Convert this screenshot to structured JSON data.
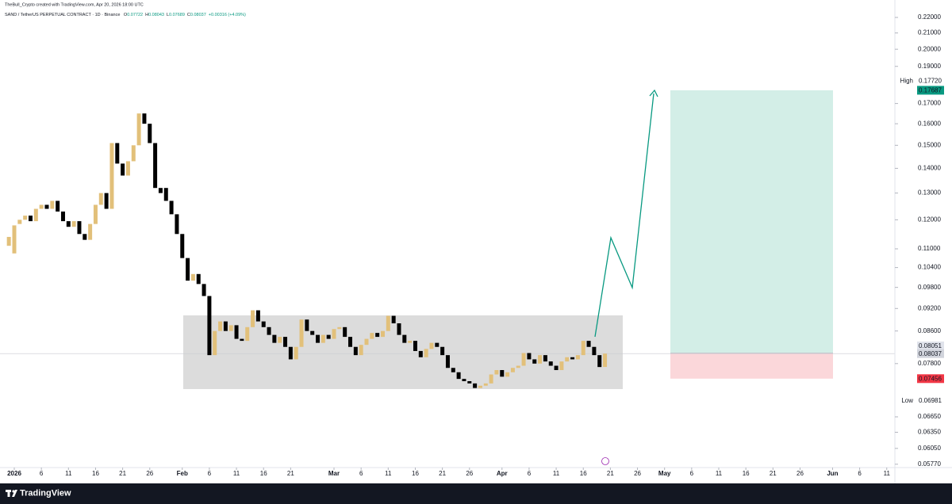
{
  "header": {
    "credit": "TheBull_Crypto created with TradingView.com, Apr 20, 2026 18:00 UTC",
    "symbol": "SAND / TetherUS PERPETUAL CONTRACT · 1D · Binance",
    "legend": [
      {
        "label": "O",
        "value": 0.07722
      },
      {
        "label": "H",
        "value": 0.08043
      },
      {
        "label": "L",
        "value": 0.07689
      },
      {
        "label": "C",
        "value": 0.08037
      }
    ],
    "change": "+0.00316 (+4.09%)"
  },
  "chart_data": {
    "type": "candlestick",
    "x": [
      -1,
      0,
      1,
      2,
      3,
      4,
      5,
      6,
      7,
      8,
      9,
      10,
      11,
      12,
      13,
      14,
      15,
      16,
      17,
      18,
      19,
      20,
      21,
      22,
      23,
      24,
      25,
      26,
      27,
      28,
      29,
      30,
      31,
      32,
      33,
      34,
      35,
      36,
      37,
      38,
      39,
      40,
      41,
      42,
      43,
      44,
      45,
      46,
      47,
      48,
      49,
      50,
      51,
      52,
      53,
      54,
      55,
      56,
      57,
      58,
      59,
      60,
      61,
      62,
      63,
      64,
      65,
      66,
      67,
      68,
      69,
      70,
      71,
      72,
      73,
      74,
      75,
      76,
      77,
      78,
      79,
      80,
      81,
      82,
      83,
      84,
      85,
      86,
      87,
      88,
      89,
      90,
      91,
      92,
      93,
      94,
      95,
      96,
      97,
      98,
      99,
      100,
      101,
      102,
      103,
      104,
      105,
      106,
      107,
      108,
      109
    ],
    "open": [
      0.111,
      0.1085,
      0.1185,
      0.12,
      0.1215,
      0.1195,
      0.124,
      0.1255,
      0.124,
      0.127,
      0.123,
      0.1195,
      0.1175,
      0.1195,
      0.115,
      0.113,
      0.1185,
      0.1255,
      0.13,
      0.124,
      0.151,
      0.142,
      0.137,
      0.143,
      0.15,
      0.165,
      0.16,
      0.151,
      0.132,
      0.132,
      0.127,
      0.122,
      0.115,
      0.107,
      0.1,
      0.102,
      0.099,
      0.0955,
      0.08,
      0.086,
      0.0885,
      0.086,
      0.0875,
      0.084,
      0.0835,
      0.087,
      0.0915,
      0.0885,
      0.087,
      0.085,
      0.083,
      0.0845,
      0.082,
      0.079,
      0.082,
      0.089,
      0.086,
      0.085,
      0.083,
      0.085,
      0.084,
      0.0865,
      0.087,
      0.0845,
      0.082,
      0.08,
      0.0825,
      0.084,
      0.0855,
      0.0845,
      0.086,
      0.09,
      0.088,
      0.085,
      0.083,
      0.0835,
      0.081,
      0.0795,
      0.0815,
      0.083,
      0.082,
      0.08,
      0.077,
      0.076,
      0.0745,
      0.074,
      0.0735,
      0.0725,
      0.073,
      0.0735,
      0.0755,
      0.0765,
      0.075,
      0.076,
      0.077,
      0.0775,
      0.0805,
      0.079,
      0.078,
      0.08,
      0.0785,
      0.0775,
      0.0765,
      0.0785,
      0.0795,
      0.079,
      0.08,
      0.0835,
      0.082,
      0.08,
      0.07722
    ],
    "high": {
      "name": "High",
      "value": 0.1772,
      "value_label": "0.17720"
    },
    "low": {
      "name": "Low",
      "value": 0.06981
    },
    "close": [
      0.114,
      0.118,
      0.12,
      0.1215,
      0.1195,
      0.124,
      0.1255,
      0.124,
      0.127,
      0.123,
      0.1195,
      0.1175,
      0.1195,
      0.115,
      0.113,
      0.1185,
      0.1255,
      0.13,
      0.124,
      0.151,
      0.142,
      0.137,
      0.143,
      0.15,
      0.165,
      0.16,
      0.151,
      0.132,
      0.13,
      0.127,
      0.122,
      0.115,
      0.107,
      0.1,
      0.102,
      0.099,
      0.0955,
      0.08,
      0.086,
      0.0885,
      0.086,
      0.0875,
      0.084,
      0.0835,
      0.087,
      0.0915,
      0.0885,
      0.087,
      0.085,
      0.083,
      0.0845,
      0.082,
      0.079,
      0.082,
      0.089,
      0.086,
      0.085,
      0.083,
      0.085,
      0.084,
      0.0865,
      0.087,
      0.0845,
      0.082,
      0.08,
      0.0825,
      0.084,
      0.0855,
      0.0845,
      0.086,
      0.09,
      0.088,
      0.085,
      0.083,
      0.0835,
      0.081,
      0.0795,
      0.0815,
      0.083,
      0.082,
      0.08,
      0.077,
      0.076,
      0.0745,
      0.074,
      0.0735,
      0.0725,
      0.073,
      0.0735,
      0.0755,
      0.0765,
      0.075,
      0.076,
      0.077,
      0.0775,
      0.0805,
      0.079,
      0.078,
      0.08,
      0.0785,
      0.0775,
      0.0765,
      0.0785,
      0.0795,
      0.079,
      0.08,
      0.0835,
      0.082,
      0.08,
      0.0772,
      0.08037
    ],
    "colors": {
      "up": "#e2c07a",
      "down": "#000000"
    },
    "xlim": [
      -2.635,
      162.5
    ],
    "xticks": [
      {
        "value": 0,
        "label": "2026"
      },
      {
        "value": 5,
        "label": "6"
      },
      {
        "value": 10,
        "label": "11"
      },
      {
        "value": 15,
        "label": "16"
      },
      {
        "value": 20,
        "label": "21"
      },
      {
        "value": 25,
        "label": "26"
      },
      {
        "value": 31,
        "label": "Feb"
      },
      {
        "value": 36,
        "label": "6"
      },
      {
        "value": 41,
        "label": "11"
      },
      {
        "value": 46,
        "label": "16"
      },
      {
        "value": 51,
        "label": "21"
      },
      {
        "value": 59,
        "label": "Mar"
      },
      {
        "value": 64,
        "label": "6"
      },
      {
        "value": 69,
        "label": "11"
      },
      {
        "value": 74,
        "label": "16"
      },
      {
        "value": 79,
        "label": "21"
      },
      {
        "value": 84,
        "label": "26"
      },
      {
        "value": 90,
        "label": "Apr"
      },
      {
        "value": 95,
        "label": "6"
      },
      {
        "value": 100,
        "label": "11"
      },
      {
        "value": 105,
        "label": "16"
      },
      {
        "value": 110,
        "label": "21"
      },
      {
        "value": 115,
        "label": "26"
      },
      {
        "value": 120,
        "label": "May"
      },
      {
        "value": 125,
        "label": "6"
      },
      {
        "value": 130,
        "label": "11"
      },
      {
        "value": 135,
        "label": "16"
      },
      {
        "value": 140,
        "label": "21"
      },
      {
        "value": 145,
        "label": "26"
      },
      {
        "value": 151,
        "label": "Jun"
      },
      {
        "value": 156,
        "label": "6"
      },
      {
        "value": 161,
        "label": "11"
      }
    ],
    "ylim": [
      0.0574,
      0.2296
    ],
    "log_scale": true,
    "yticks": [
      {
        "value": 0.22,
        "label": "0.22000"
      },
      {
        "value": 0.21,
        "label": "0.21000"
      },
      {
        "value": 0.2,
        "label": "0.20000"
      },
      {
        "value": 0.19,
        "label": "0.19000"
      },
      {
        "value": 0.17,
        "label": "0.17000"
      },
      {
        "value": 0.16,
        "label": "0.16000"
      },
      {
        "value": 0.15,
        "label": "0.15000"
      },
      {
        "value": 0.14,
        "label": "0.14000"
      },
      {
        "value": 0.13,
        "label": "0.13000"
      },
      {
        "value": 0.12,
        "label": "0.12000"
      },
      {
        "value": 0.11,
        "label": "0.11000"
      },
      {
        "value": 0.104,
        "label": "0.10400"
      },
      {
        "value": 0.098,
        "label": "0.09800"
      },
      {
        "value": 0.092,
        "label": "0.09200"
      },
      {
        "value": 0.086,
        "label": "0.08600"
      },
      {
        "value": 0.078,
        "label": "0.07800"
      },
      {
        "value": 0.0665,
        "label": "0.06650"
      },
      {
        "value": 0.0635,
        "label": "0.06350"
      },
      {
        "value": 0.0605,
        "label": "0.06050"
      },
      {
        "value": 0.0577,
        "label": "0.05770"
      }
    ],
    "last_price": 0.08037,
    "position": {
      "target": 0.17687,
      "entry": 0.08051,
      "stop": 0.07456
    }
  },
  "footer": {
    "brand": "TradingView"
  }
}
